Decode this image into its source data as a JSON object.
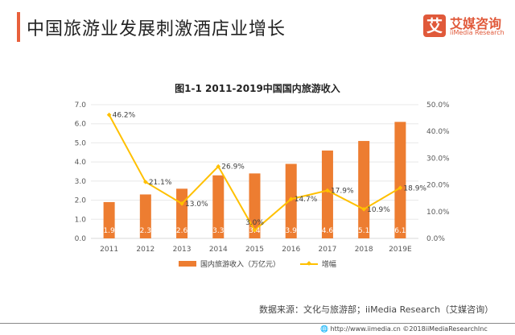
{
  "header": {
    "title": "中国旅游业发展刺激酒店业增长",
    "logo_mark": "艾",
    "logo_cn": "艾媒咨询",
    "logo_en": "iiMedia Research",
    "accent_color": "#e8603c"
  },
  "chart_data": {
    "type": "bar",
    "title": "图1-1 2011-2019中国国内旅游收入",
    "categories": [
      "2011",
      "2012",
      "2013",
      "2014",
      "2015",
      "2016",
      "2017",
      "2018",
      "2019E"
    ],
    "series": [
      {
        "name": "国内旅游收入（万亿元）",
        "type": "bar",
        "axis": "left",
        "color": "#ed7d31",
        "values": [
          1.9,
          2.3,
          2.6,
          3.3,
          3.4,
          3.9,
          4.6,
          5.1,
          6.1
        ],
        "labels": [
          "1.9",
          "2.3",
          "2.6",
          "3.3",
          "3.4",
          "3.9",
          "4.6",
          "5.1",
          "6.1"
        ]
      },
      {
        "name": "增幅",
        "type": "line",
        "axis": "right",
        "color": "#ffc000",
        "values": [
          46.2,
          21.1,
          13.0,
          26.9,
          3.0,
          14.7,
          17.9,
          10.9,
          18.9
        ],
        "labels": [
          "46.2%",
          "21.1%",
          "13.0%",
          "26.9%",
          "3.0%",
          "14.7%",
          "17.9%",
          "10.9%",
          "18.9%"
        ]
      }
    ],
    "y_left": {
      "range": [
        0,
        7
      ],
      "ticks": [
        "0.0",
        "1.0",
        "2.0",
        "3.0",
        "4.0",
        "5.0",
        "6.0",
        "7.0"
      ]
    },
    "y_right": {
      "range": [
        0,
        50
      ],
      "ticks": [
        "0.0%",
        "10.0%",
        "20.0%",
        "30.0%",
        "40.0%",
        "50.0%"
      ]
    },
    "grid": true,
    "legend_position": "bottom",
    "legend": [
      "国内旅游收入（万亿元）",
      "增幅"
    ]
  },
  "source": "数据来源：文化与旅游部；iiMedia Research（艾媒咨询）",
  "footer": "http://www.iimedia.cn   ©2018iiMediaResearchInc"
}
